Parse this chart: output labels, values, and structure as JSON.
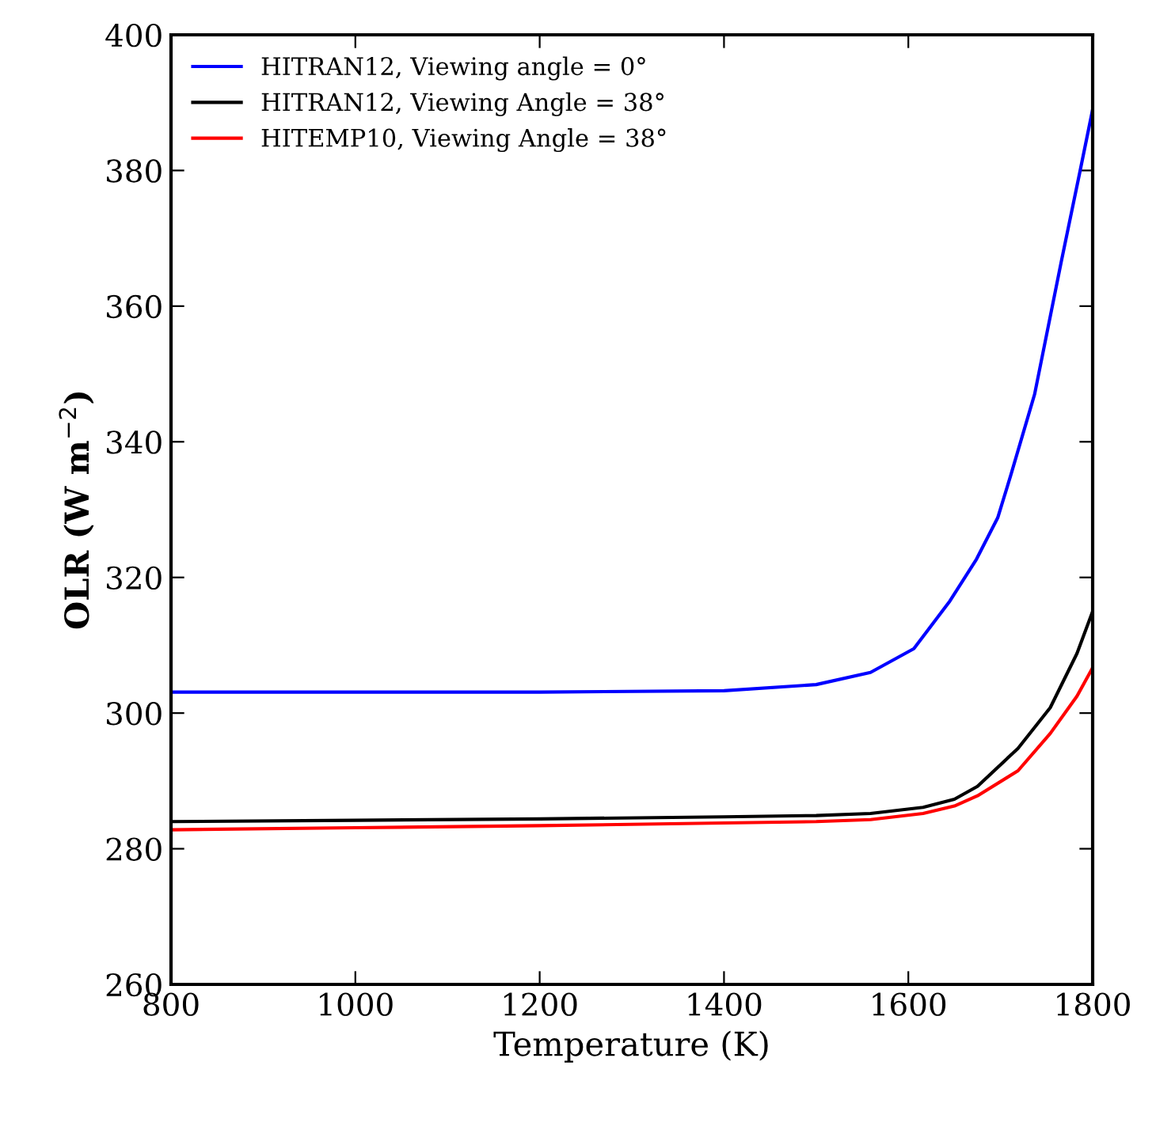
{
  "chart_data": {
    "type": "line",
    "xlabel": "Temperature (K)",
    "ylabel": "OLR (W m$^{−2}$)",
    "xlim": [
      800,
      1800
    ],
    "ylim": [
      260,
      400
    ],
    "xticks": [
      800,
      1000,
      1200,
      1400,
      1600,
      1800
    ],
    "yticks": [
      260,
      280,
      300,
      320,
      340,
      360,
      380,
      400
    ],
    "grid": false,
    "legend": "top left",
    "line_style": "solid",
    "marker": "none",
    "x": [
      800,
      1000,
      1200,
      1400,
      1500,
      1559,
      1606,
      1645,
      1674,
      1697,
      1711,
      1737,
      1766,
      1786,
      1800
    ],
    "series": [
      {
        "name": "HITRAN12, Viewing angle = 0°",
        "color": "#0000ff",
        "values": [
          303.1,
          303.1,
          303.1,
          303.3,
          304.2,
          306,
          309.5,
          316.5,
          322.7,
          328.8,
          335,
          347,
          366.6,
          379.7,
          389
        ]
      },
      {
        "name": "HITRAN12, Viewing Angle = 38°",
        "color": "#000000",
        "x": [
          800,
          1000,
          1200,
          1400,
          1500,
          1559,
          1616,
          1650,
          1675,
          1719,
          1754,
          1783,
          1800
        ],
        "values": [
          284,
          284.2,
          284.4,
          284.7,
          284.9,
          285.2,
          286.1,
          287.3,
          289.2,
          294.8,
          300.8,
          308.8,
          315
        ]
      },
      {
        "name": "HITEMP10, Viewing Angle = 38°",
        "color": "#ff0000",
        "x": [
          800,
          1000,
          1200,
          1400,
          1500,
          1559,
          1616,
          1650,
          1675,
          1719,
          1754,
          1783,
          1800
        ],
        "values": [
          282.8,
          283.1,
          283.4,
          283.8,
          284,
          284.3,
          285.2,
          286.3,
          287.8,
          291.5,
          297,
          302.5,
          306.7
        ]
      }
    ]
  }
}
